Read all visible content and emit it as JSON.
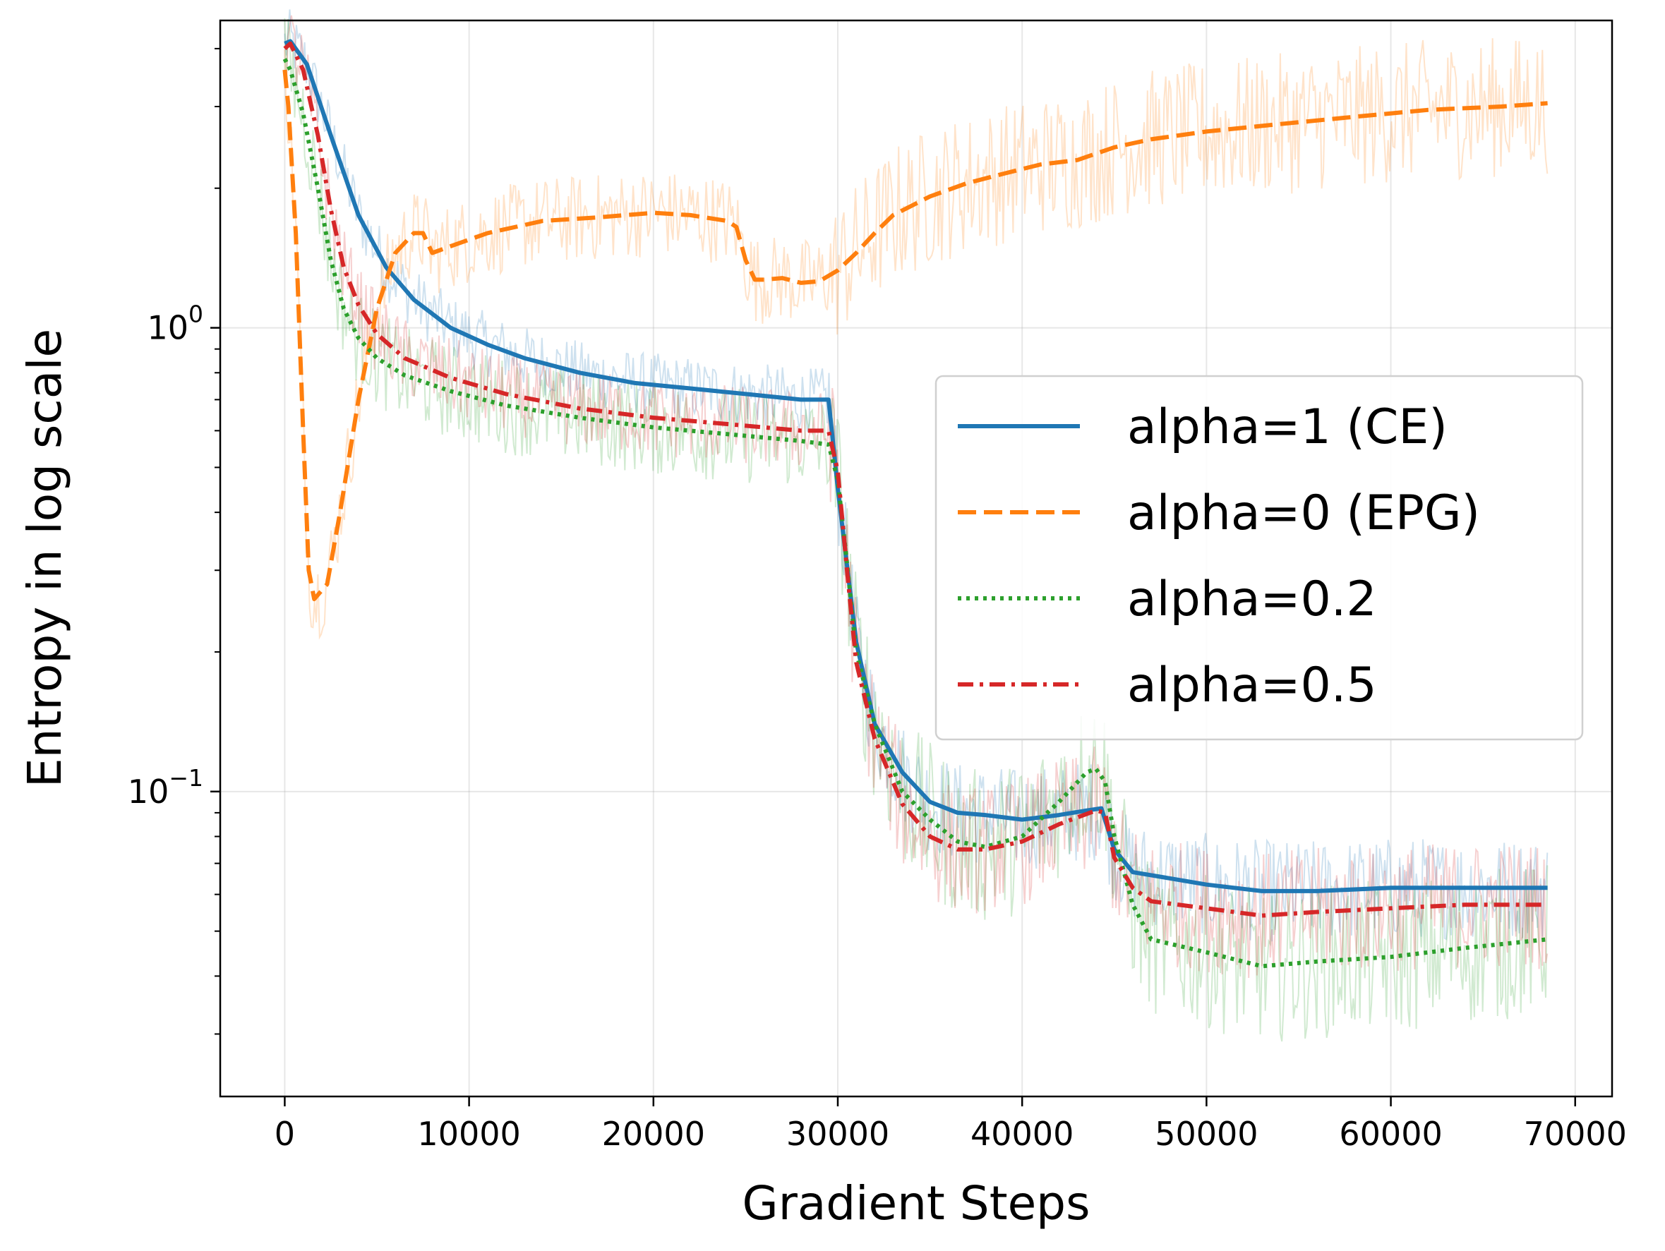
{
  "chart_data": {
    "type": "line",
    "title": "",
    "xlabel": "Gradient Steps",
    "ylabel": "Entropy in log scale",
    "yscale": "log",
    "xlim": [
      -3500,
      72000
    ],
    "ylim": [
      0.022,
      4.6
    ],
    "xticks": [
      0,
      10000,
      20000,
      30000,
      40000,
      50000,
      60000,
      70000
    ],
    "xtick_labels": [
      "0",
      "10000",
      "20000",
      "30000",
      "40000",
      "50000",
      "60000",
      "70000"
    ],
    "yticks": [
      1.0,
      0.1
    ],
    "ytick_labels": [
      {
        "base": "10",
        "exp": "0"
      },
      {
        "base": "10",
        "exp": "−1"
      }
    ],
    "grid": true,
    "legend_position": "center-right",
    "series": [
      {
        "name": "alpha=1 (CE)",
        "color": "#1f77b4",
        "dash": "solid",
        "x": [
          0,
          300,
          1200,
          2500,
          4000,
          5500,
          7000,
          9000,
          11000,
          13000,
          16000,
          19000,
          22000,
          25000,
          28000,
          29500,
          30000,
          31000,
          32000,
          33500,
          35000,
          36500,
          38000,
          40000,
          42000,
          43500,
          44300,
          45000,
          46000,
          48000,
          50000,
          53000,
          56000,
          60000,
          64000,
          68500
        ],
        "y": [
          4.1,
          4.15,
          3.7,
          2.6,
          1.75,
          1.35,
          1.15,
          1.0,
          0.92,
          0.86,
          0.8,
          0.76,
          0.74,
          0.72,
          0.7,
          0.7,
          0.45,
          0.21,
          0.14,
          0.11,
          0.095,
          0.09,
          0.089,
          0.087,
          0.089,
          0.091,
          0.092,
          0.075,
          0.067,
          0.065,
          0.063,
          0.061,
          0.061,
          0.062,
          0.062,
          0.062
        ]
      },
      {
        "name": "alpha=0 (EPG)",
        "color": "#ff7f0e",
        "dash": "dashed",
        "x": [
          0,
          200,
          600,
          1000,
          1300,
          1600,
          2300,
          3000,
          4000,
          5000,
          6000,
          7000,
          7500,
          8000,
          9000,
          11000,
          14000,
          17000,
          20000,
          22000,
          24000,
          24500,
          25000,
          25500,
          26000,
          27000,
          28000,
          29000,
          30000,
          31000,
          32000,
          33000,
          35000,
          37000,
          39000,
          41000,
          43000,
          45000,
          47000,
          50000,
          54000,
          58000,
          62000,
          66000,
          68500
        ],
        "y": [
          3.6,
          3.0,
          1.6,
          0.6,
          0.3,
          0.26,
          0.28,
          0.4,
          0.7,
          1.1,
          1.45,
          1.6,
          1.6,
          1.45,
          1.5,
          1.6,
          1.7,
          1.73,
          1.77,
          1.75,
          1.7,
          1.65,
          1.4,
          1.27,
          1.27,
          1.28,
          1.25,
          1.26,
          1.33,
          1.45,
          1.6,
          1.75,
          1.92,
          2.05,
          2.15,
          2.25,
          2.3,
          2.45,
          2.55,
          2.65,
          2.75,
          2.85,
          2.95,
          3.0,
          3.05
        ]
      },
      {
        "name": "alpha=0.2",
        "color": "#2ca02c",
        "dash": "dotted",
        "x": [
          0,
          300,
          1000,
          1800,
          2500,
          3200,
          4000,
          5000,
          6500,
          9000,
          12000,
          16000,
          20000,
          24000,
          28000,
          29500,
          30000,
          30500,
          31000,
          32000,
          33500,
          35000,
          36500,
          38000,
          40000,
          42000,
          43500,
          44000,
          44500,
          45000,
          46000,
          47000,
          50000,
          53000,
          56000,
          60000,
          64000,
          68500
        ],
        "y": [
          3.8,
          3.6,
          2.9,
          2.0,
          1.4,
          1.1,
          0.95,
          0.86,
          0.79,
          0.73,
          0.68,
          0.64,
          0.61,
          0.59,
          0.57,
          0.56,
          0.47,
          0.31,
          0.2,
          0.14,
          0.1,
          0.087,
          0.078,
          0.076,
          0.08,
          0.095,
          0.11,
          0.112,
          0.105,
          0.08,
          0.057,
          0.048,
          0.045,
          0.042,
          0.043,
          0.044,
          0.046,
          0.048
        ]
      },
      {
        "name": "alpha=0.5",
        "color": "#d62728",
        "dash": "dashdot",
        "x": [
          0,
          300,
          1000,
          1800,
          2500,
          3200,
          4000,
          5000,
          6500,
          9000,
          12000,
          16000,
          20000,
          24000,
          28000,
          29500,
          30000,
          30500,
          31000,
          32000,
          33500,
          35000,
          36500,
          38000,
          40000,
          42000,
          44000,
          44500,
          45000,
          46000,
          47000,
          50000,
          53000,
          56000,
          60000,
          64000,
          68500
        ],
        "y": [
          4.0,
          4.1,
          3.6,
          2.6,
          1.8,
          1.35,
          1.12,
          0.97,
          0.86,
          0.78,
          0.72,
          0.67,
          0.64,
          0.62,
          0.6,
          0.6,
          0.49,
          0.3,
          0.19,
          0.13,
          0.094,
          0.08,
          0.075,
          0.075,
          0.078,
          0.085,
          0.091,
          0.09,
          0.072,
          0.062,
          0.058,
          0.056,
          0.054,
          0.055,
          0.056,
          0.057,
          0.057
        ]
      }
    ]
  }
}
